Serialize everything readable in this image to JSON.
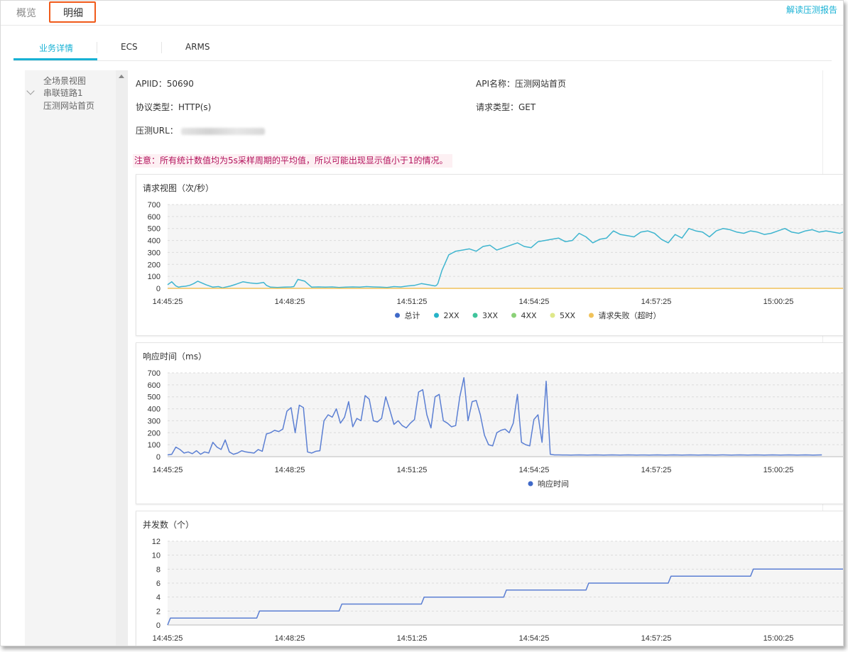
{
  "top_tabs": [
    {
      "label": "概览"
    },
    {
      "label": "明细"
    }
  ],
  "report_link": "解读压测报告",
  "sub_tabs": [
    {
      "label": "业务详情"
    },
    {
      "label": "ECS"
    },
    {
      "label": "ARMS"
    }
  ],
  "sidebar": {
    "items": [
      {
        "label": "全场景视图"
      },
      {
        "label": "串联链路1"
      },
      {
        "label": "压测网站首页"
      }
    ]
  },
  "info": {
    "apiid": "APIID：50690",
    "api_name": "API名称：压测网站首页",
    "protocol": "协议类型：HTTP(s)",
    "request_type": "请求类型：GET",
    "url_label": "压测URL："
  },
  "notice": "注意：所有统计数值均为5s采样周期的平均值，所以可能出现显示值小于1的情况。",
  "colors": {
    "accent": "#17b1d4",
    "highlight": "#f05a1a",
    "notice_text": "#b3125c"
  },
  "chart_data": [
    {
      "type": "line",
      "title": "请求视图（次/秒）",
      "x_ticks": [
        "14:45:25",
        "14:48:25",
        "14:51:25",
        "14:54:25",
        "14:57:25",
        "15:00:25"
      ],
      "ylim": [
        0,
        700
      ],
      "y_ticks": [
        0,
        100,
        200,
        300,
        400,
        500,
        600,
        700
      ],
      "grid": true,
      "legend_position": "bottom",
      "legend": [
        {
          "name": "总计",
          "color": "#3f69c8"
        },
        {
          "name": "2XX",
          "color": "#25b3c8"
        },
        {
          "name": "3XX",
          "color": "#3fc49c"
        },
        {
          "name": "4XX",
          "color": "#8bd178"
        },
        {
          "name": "5XX",
          "color": "#dfe88a"
        },
        {
          "name": "请求失败（超时）",
          "color": "#f0c25a"
        }
      ],
      "series": [
        {
          "name": "2XX",
          "color": "#3fb5cf",
          "x_min": [
            0,
            3,
            6,
            8,
            10,
            13,
            16,
            19,
            22,
            25,
            28,
            33,
            37,
            40,
            42,
            44,
            46,
            50,
            55,
            60,
            65,
            70,
            72,
            75,
            80,
            85,
            90,
            92,
            95,
            100,
            105,
            110,
            115,
            120,
            125,
            130,
            135,
            140,
            145,
            150,
            155,
            160,
            162,
            165,
            170,
            175,
            180,
            185,
            190,
            195,
            196,
            197,
            200,
            205,
            210,
            215,
            220,
            225,
            230,
            235,
            240,
            245,
            250,
            255,
            260,
            265,
            270,
            275,
            280,
            285,
            290,
            295,
            300,
            305,
            310,
            315,
            320,
            325,
            330,
            335,
            340,
            345,
            350,
            355,
            360,
            365,
            370,
            375,
            380,
            385,
            390,
            395,
            400,
            405,
            410,
            415,
            420,
            425,
            430,
            435,
            440,
            445,
            450,
            455,
            460,
            465,
            470,
            475,
            480,
            485,
            490,
            495
          ],
          "values": [
            30,
            55,
            20,
            10,
            15,
            18,
            25,
            40,
            60,
            45,
            30,
            10,
            15,
            5,
            10,
            15,
            20,
            35,
            55,
            45,
            40,
            50,
            25,
            10,
            8,
            10,
            12,
            15,
            75,
            60,
            10,
            12,
            10,
            12,
            8,
            10,
            12,
            10,
            15,
            12,
            10,
            8,
            10,
            15,
            12,
            20,
            25,
            40,
            30,
            20,
            25,
            40,
            150,
            280,
            310,
            320,
            330,
            310,
            350,
            360,
            320,
            340,
            360,
            380,
            350,
            340,
            390,
            400,
            410,
            420,
            390,
            400,
            460,
            430,
            380,
            410,
            420,
            480,
            450,
            440,
            430,
            470,
            480,
            460,
            410,
            380,
            450,
            420,
            500,
            480,
            470,
            430,
            480,
            500,
            490,
            470,
            460,
            480,
            470,
            450,
            460,
            480,
            500,
            470,
            460,
            480,
            490,
            470,
            480,
            470,
            460,
            480
          ]
        },
        {
          "name": "请求失败（超时）",
          "color": "#f0c25a",
          "x_min": [
            0,
            495
          ],
          "values": [
            0,
            0
          ]
        }
      ]
    },
    {
      "type": "line",
      "title": "响应时间（ms）",
      "x_ticks": [
        "14:45:25",
        "14:48:25",
        "14:51:25",
        "14:54:25",
        "14:57:25",
        "15:00:25"
      ],
      "ylim": [
        0,
        700
      ],
      "y_ticks": [
        0,
        100,
        200,
        300,
        400,
        500,
        600,
        700
      ],
      "grid": true,
      "legend_position": "bottom",
      "legend": [
        {
          "name": "响应时间",
          "color": "#3f69c8"
        }
      ],
      "series": [
        {
          "name": "响应时间",
          "color": "#5b7fd3",
          "x_min": [
            0,
            3,
            6,
            9,
            12,
            15,
            18,
            21,
            24,
            27,
            30,
            33,
            36,
            39,
            42,
            45,
            48,
            51,
            54,
            57,
            60,
            63,
            66,
            69,
            72,
            75,
            78,
            81,
            84,
            87,
            90,
            93,
            96,
            99,
            102,
            105,
            108,
            111,
            114,
            117,
            120,
            123,
            126,
            129,
            132,
            135,
            138,
            141,
            144,
            147,
            150,
            153,
            156,
            159,
            162,
            165,
            168,
            171,
            174,
            177,
            180,
            183,
            186,
            189,
            192,
            195,
            198,
            201,
            204,
            207,
            210,
            213,
            216,
            219,
            222,
            225,
            228,
            231,
            234,
            237,
            240,
            243,
            246,
            249,
            252,
            255,
            258,
            261,
            264,
            267,
            270,
            273,
            276,
            279,
            282,
            285,
            288,
            291,
            294,
            297,
            300,
            303,
            306,
            309,
            312,
            315,
            318,
            321,
            324,
            327,
            330,
            333,
            336,
            339,
            342,
            345,
            348,
            351,
            354,
            357,
            360,
            363,
            366,
            369,
            372,
            375,
            378,
            381,
            384,
            387,
            390,
            393,
            396,
            399,
            402,
            405,
            408,
            411,
            414,
            417,
            420,
            423,
            426,
            429,
            432,
            435,
            438,
            441,
            444,
            447,
            450,
            453,
            456,
            459,
            462,
            465,
            468,
            471,
            474,
            477,
            480,
            483,
            486,
            489,
            492,
            495
          ],
          "values": [
            15,
            20,
            80,
            60,
            30,
            40,
            25,
            50,
            20,
            40,
            30,
            120,
            80,
            60,
            140,
            40,
            20,
            30,
            50,
            40,
            35,
            30,
            60,
            45,
            190,
            200,
            220,
            210,
            230,
            380,
            410,
            200,
            430,
            410,
            40,
            30,
            45,
            50,
            300,
            350,
            330,
            400,
            280,
            330,
            460,
            250,
            320,
            300,
            510,
            480,
            300,
            290,
            320,
            500,
            390,
            270,
            300,
            260,
            240,
            280,
            310,
            540,
            560,
            350,
            240,
            500,
            520,
            300,
            280,
            250,
            260,
            500,
            660,
            300,
            460,
            470,
            350,
            180,
            100,
            90,
            200,
            220,
            230,
            200,
            280,
            520,
            120,
            100,
            90,
            310,
            350,
            120,
            630,
            20,
            15,
            15,
            14,
            14,
            13,
            14,
            15,
            14,
            13,
            14,
            15,
            14,
            13,
            14,
            15,
            14,
            13,
            14,
            15,
            14,
            13,
            14,
            14,
            13,
            14,
            15,
            14,
            13,
            14,
            15,
            14,
            13,
            14,
            15,
            14,
            13,
            14,
            15,
            14,
            13,
            14,
            15,
            14,
            13,
            14,
            15,
            14,
            13,
            14,
            15,
            14,
            13,
            14,
            15,
            14,
            13,
            14,
            15,
            14,
            13,
            14,
            15,
            14,
            13,
            14,
            15
          ]
        }
      ]
    },
    {
      "type": "line",
      "title": "并发数（个）",
      "x_ticks": [
        "14:45:25",
        "14:48:25",
        "14:51:25",
        "14:54:25",
        "14:57:25",
        "15:00:25"
      ],
      "ylim": [
        0,
        12
      ],
      "y_ticks": [
        0,
        2,
        4,
        6,
        8,
        10,
        12
      ],
      "grid": true,
      "series": [
        {
          "name": "并发",
          "color": "#5b7fd3",
          "x_min": [
            0,
            2,
            65,
            67,
            125,
            127,
            185,
            187,
            245,
            247,
            305,
            307,
            365,
            367,
            425,
            427,
            495
          ],
          "values": [
            0,
            1,
            1,
            2,
            2,
            3,
            3,
            4,
            4,
            5,
            5,
            6,
            6,
            7,
            7,
            8,
            8
          ]
        }
      ]
    }
  ]
}
